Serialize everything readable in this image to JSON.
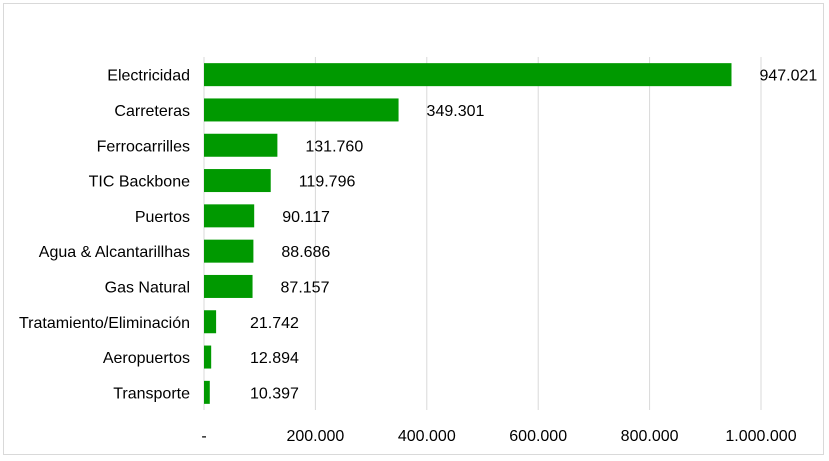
{
  "chart_data": {
    "type": "bar",
    "orientation": "horizontal",
    "categories": [
      "Electricidad",
      "Carreteras",
      "Ferrocarrilles",
      "TIC Backbone ",
      "Puertos",
      "Agua & Alcantarillhas",
      "Gas Natural",
      "Tratamiento/Eliminación",
      "Aeropuertos",
      "Transporte"
    ],
    "values": [
      947021,
      349301,
      131760,
      119796,
      90117,
      88686,
      87157,
      21742,
      12894,
      10397
    ],
    "value_labels": [
      "947.021",
      "349.301",
      "131.760",
      "119.796",
      "90.117",
      "88.686",
      "87.157",
      "21.742",
      "12.894",
      "10.397"
    ],
    "xlim": [
      0,
      1000000
    ],
    "xticks": [
      0,
      200000,
      400000,
      600000,
      800000,
      1000000
    ],
    "xtick_labels": [
      "-",
      "200.000",
      "400.000",
      "600.000",
      "800.000",
      "1.000.000"
    ],
    "grid": true,
    "legend": "none",
    "title": "",
    "xlabel": "",
    "ylabel": "",
    "bar_color": "#009900",
    "grid_color": "#d9d9d9"
  }
}
